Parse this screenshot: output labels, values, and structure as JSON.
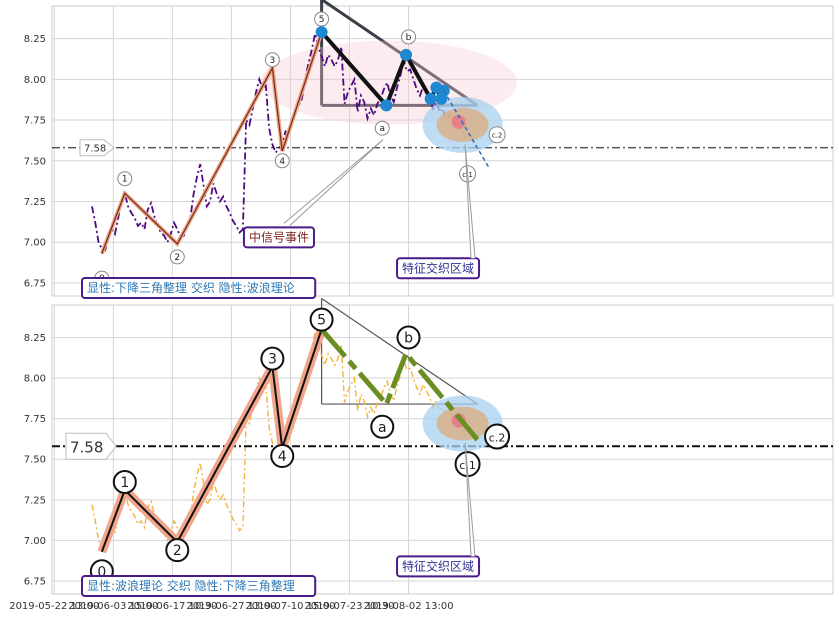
{
  "chart_data": [
    {
      "type": "line",
      "panel": "top",
      "ylim": [
        6.67,
        8.45
      ],
      "yticks": [
        6.75,
        7.0,
        7.25,
        7.5,
        7.75,
        8.0,
        8.25
      ],
      "grid": true,
      "reference_line": {
        "value": 7.58,
        "label": "7.58",
        "style": "dash-dot"
      },
      "price_series": [
        [
          0.0,
          7.22
        ],
        [
          0.4,
          7.12
        ],
        [
          0.8,
          7.0
        ],
        [
          1.2,
          6.96
        ],
        [
          1.6,
          6.95
        ],
        [
          2.0,
          7.02
        ],
        [
          2.4,
          7.08
        ],
        [
          2.8,
          7.05
        ],
        [
          3.2,
          7.15
        ],
        [
          3.6,
          7.25
        ],
        [
          4.0,
          7.3
        ],
        [
          4.4,
          7.22
        ],
        [
          4.8,
          7.18
        ],
        [
          5.2,
          7.15
        ],
        [
          5.6,
          7.1
        ],
        [
          6.0,
          7.12
        ],
        [
          6.4,
          7.08
        ],
        [
          6.8,
          7.2
        ],
        [
          7.2,
          7.24
        ],
        [
          7.6,
          7.16
        ],
        [
          8.0,
          7.1
        ],
        [
          8.4,
          7.06
        ],
        [
          8.8,
          7.04
        ],
        [
          9.2,
          7.0
        ],
        [
          9.6,
          7.05
        ],
        [
          10.0,
          7.12
        ],
        [
          10.4,
          7.08
        ],
        [
          10.8,
          7.03
        ],
        [
          11.2,
          7.04
        ],
        [
          11.6,
          7.1
        ],
        [
          12.0,
          7.15
        ],
        [
          12.4,
          7.3
        ],
        [
          12.8,
          7.4
        ],
        [
          13.2,
          7.48
        ],
        [
          13.6,
          7.35
        ],
        [
          14.0,
          7.22
        ],
        [
          14.4,
          7.25
        ],
        [
          14.8,
          7.36
        ],
        [
          15.2,
          7.3
        ],
        [
          15.6,
          7.25
        ],
        [
          16.0,
          7.28
        ],
        [
          16.4,
          7.22
        ],
        [
          16.8,
          7.18
        ],
        [
          17.2,
          7.13
        ],
        [
          17.6,
          7.1
        ],
        [
          18.0,
          7.06
        ],
        [
          18.4,
          7.08
        ],
        [
          18.8,
          7.75
        ],
        [
          19.2,
          7.72
        ],
        [
          19.6,
          7.82
        ],
        [
          20.0,
          7.92
        ],
        [
          20.4,
          8.0
        ],
        [
          20.8,
          7.94
        ],
        [
          21.2,
          7.96
        ],
        [
          21.6,
          7.7
        ],
        [
          22.0,
          7.6
        ],
        [
          22.4,
          7.55
        ],
        [
          22.8,
          7.58
        ],
        [
          23.2,
          7.6
        ],
        [
          23.6,
          7.68
        ],
        [
          24.0,
          7.66
        ],
        [
          24.4,
          7.75
        ],
        [
          24.8,
          7.8
        ],
        [
          25.2,
          7.84
        ],
        [
          25.6,
          7.88
        ],
        [
          26.0,
          8.0
        ],
        [
          26.4,
          8.1
        ],
        [
          26.8,
          8.18
        ],
        [
          27.2,
          8.28
        ],
        [
          27.6,
          8.2
        ],
        [
          28.0,
          8.14
        ],
        [
          28.4,
          8.08
        ],
        [
          28.8,
          8.15
        ],
        [
          29.2,
          8.12
        ],
        [
          29.6,
          8.08
        ],
        [
          30.0,
          8.12
        ],
        [
          30.4,
          8.2
        ],
        [
          30.8,
          7.85
        ],
        [
          31.2,
          7.92
        ],
        [
          31.6,
          7.96
        ],
        [
          32.0,
          8.0
        ],
        [
          32.4,
          7.8
        ],
        [
          32.8,
          7.9
        ],
        [
          33.2,
          7.86
        ],
        [
          33.6,
          7.76
        ],
        [
          34.0,
          7.82
        ],
        [
          34.4,
          7.78
        ],
        [
          34.8,
          7.85
        ],
        [
          35.2,
          7.88
        ],
        [
          35.6,
          7.94
        ],
        [
          36.0,
          7.98
        ],
        [
          36.4,
          7.9
        ],
        [
          36.8,
          7.86
        ],
        [
          37.2,
          7.95
        ],
        [
          37.6,
          8.02
        ],
        [
          38.0,
          8.12
        ],
        [
          38.4,
          8.05
        ],
        [
          38.8,
          8.06
        ],
        [
          39.2,
          8.0
        ],
        [
          39.6,
          7.94
        ],
        [
          40.0,
          7.9
        ],
        [
          40.4,
          7.96
        ],
        [
          40.8,
          7.92
        ],
        [
          41.2,
          7.88
        ],
        [
          41.6,
          7.82
        ],
        [
          42.0,
          7.86
        ],
        [
          42.4,
          7.8
        ],
        [
          42.8,
          7.82
        ],
        [
          43.2,
          7.74
        ],
        [
          43.6,
          7.78
        ],
        [
          44.0,
          7.74
        ],
        [
          44.4,
          7.72
        ],
        [
          44.8,
          7.7
        ],
        [
          45.2,
          7.68
        ],
        [
          45.6,
          7.64
        ]
      ],
      "wave_path": [
        {
          "label": "0",
          "x": 1.2,
          "y": 6.93
        },
        {
          "label": "1",
          "x": 4.0,
          "y": 7.3
        },
        {
          "label": "2",
          "x": 10.4,
          "y": 6.99
        },
        {
          "label": "3",
          "x": 22.0,
          "y": 8.07
        },
        {
          "label": "4",
          "x": 23.2,
          "y": 7.56
        },
        {
          "label": "5",
          "x": 28.0,
          "y": 8.29
        }
      ],
      "triangle_path": [
        {
          "label": "5",
          "x": 28.0,
          "y": 8.29
        },
        {
          "label": "a",
          "x": 35.9,
          "y": 7.84
        },
        {
          "label": "b",
          "x": 38.3,
          "y": 8.15
        },
        {
          "label": "",
          "x": 41.3,
          "y": 7.88
        },
        {
          "label": "",
          "x": 42.0,
          "y": 7.95
        },
        {
          "label": "",
          "x": 42.6,
          "y": 7.88
        },
        {
          "label": "",
          "x": 42.9,
          "y": 7.93
        }
      ],
      "pattern_lines": {
        "top_from": [
          28.0,
          8.49
        ],
        "top_to": [
          47.0,
          7.84
        ],
        "base_from": [
          28.0,
          7.84
        ],
        "base_to": [
          47.0,
          7.84
        ]
      },
      "wave_point_labels": [
        {
          "label": "0",
          "x": 1.2,
          "y": 6.78
        },
        {
          "label": "1",
          "x": 4.0,
          "y": 7.39
        },
        {
          "label": "2",
          "x": 10.4,
          "y": 6.91
        },
        {
          "label": "3",
          "x": 22.0,
          "y": 8.12
        },
        {
          "label": "4",
          "x": 23.2,
          "y": 7.5
        },
        {
          "label": "5",
          "x": 28.0,
          "y": 8.37
        },
        {
          "label": "a",
          "x": 35.4,
          "y": 7.7
        },
        {
          "label": "b",
          "x": 38.6,
          "y": 8.26
        },
        {
          "label": "c.1",
          "x": 45.8,
          "y": 7.42
        },
        {
          "label": "c.2",
          "x": 49.4,
          "y": 7.66
        }
      ],
      "annotations": [
        {
          "text": "中信号事件",
          "x": 22.8,
          "y": 7.03,
          "color": "#7b1f1f"
        },
        {
          "text": "特征交织区域",
          "x": 42.2,
          "y": 6.84,
          "color": "#333399"
        },
        {
          "text": "显性:下降三角整理 交织 隐性:波浪理论",
          "x": 0.0,
          "y": 6.69,
          "color": "#2d79b6"
        }
      ]
    },
    {
      "type": "line",
      "panel": "bottom",
      "ylim": [
        6.67,
        8.45
      ],
      "yticks": [
        6.75,
        7.0,
        7.25,
        7.5,
        7.75,
        8.0,
        8.25
      ],
      "grid": true,
      "reference_line": {
        "value": 7.58,
        "label": "7.58",
        "style": "dash-dot"
      },
      "x_tick_labels": [
        "2019-05-22 13:00",
        "2019-06-03 15:00",
        "2019-06-17 10:30",
        "2019-06-27 13:00",
        "2019-07-10 15:00",
        "2019-07-23 10:30",
        "2019-08-02 13:00"
      ],
      "x_tick_positions": [
        -4.6,
        2.6,
        9.8,
        17.0,
        24.2,
        31.4,
        38.6
      ],
      "wave_path": [
        {
          "label": "0",
          "x": 1.2,
          "y": 6.93
        },
        {
          "label": "1",
          "x": 4.0,
          "y": 7.31
        },
        {
          "label": "2",
          "x": 10.4,
          "y": 6.99
        },
        {
          "label": "3",
          "x": 22.0,
          "y": 8.07
        },
        {
          "label": "4",
          "x": 23.2,
          "y": 7.57
        },
        {
          "label": "5",
          "x": 28.0,
          "y": 8.3
        }
      ],
      "triangle_path": [
        {
          "label": "5",
          "x": 28.0,
          "y": 8.3
        },
        {
          "label": "a",
          "x": 35.9,
          "y": 7.84
        },
        {
          "label": "b",
          "x": 38.3,
          "y": 8.15
        },
        {
          "label": "",
          "x": 47.0,
          "y": 7.62
        }
      ],
      "pattern_lines": {
        "top_from": [
          28.0,
          8.49
        ],
        "top_to": [
          47.0,
          7.84
        ],
        "base_from": [
          28.0,
          7.84
        ],
        "base_to": [
          47.0,
          7.84
        ]
      },
      "wave_point_labels": [
        {
          "label": "0",
          "x": 1.2,
          "y": 6.81
        },
        {
          "label": "1",
          "x": 4.0,
          "y": 7.36
        },
        {
          "label": "2",
          "x": 10.4,
          "y": 6.94
        },
        {
          "label": "3",
          "x": 22.0,
          "y": 8.12
        },
        {
          "label": "4",
          "x": 23.2,
          "y": 7.52
        },
        {
          "label": "5",
          "x": 28.0,
          "y": 8.36
        },
        {
          "label": "a",
          "x": 35.4,
          "y": 7.7
        },
        {
          "label": "b",
          "x": 38.6,
          "y": 8.25
        },
        {
          "label": "c.1",
          "x": 45.8,
          "y": 7.47
        },
        {
          "label": "c.2",
          "x": 49.4,
          "y": 7.64
        }
      ],
      "annotations": [
        {
          "text": "特征交织区域",
          "x": 42.2,
          "y": 6.84,
          "color": "#333399"
        },
        {
          "text": "显性:波浪理论 交织 隐性:下降三角整理",
          "x": 0.0,
          "y": 6.69,
          "color": "#2d79b6"
        }
      ]
    }
  ]
}
